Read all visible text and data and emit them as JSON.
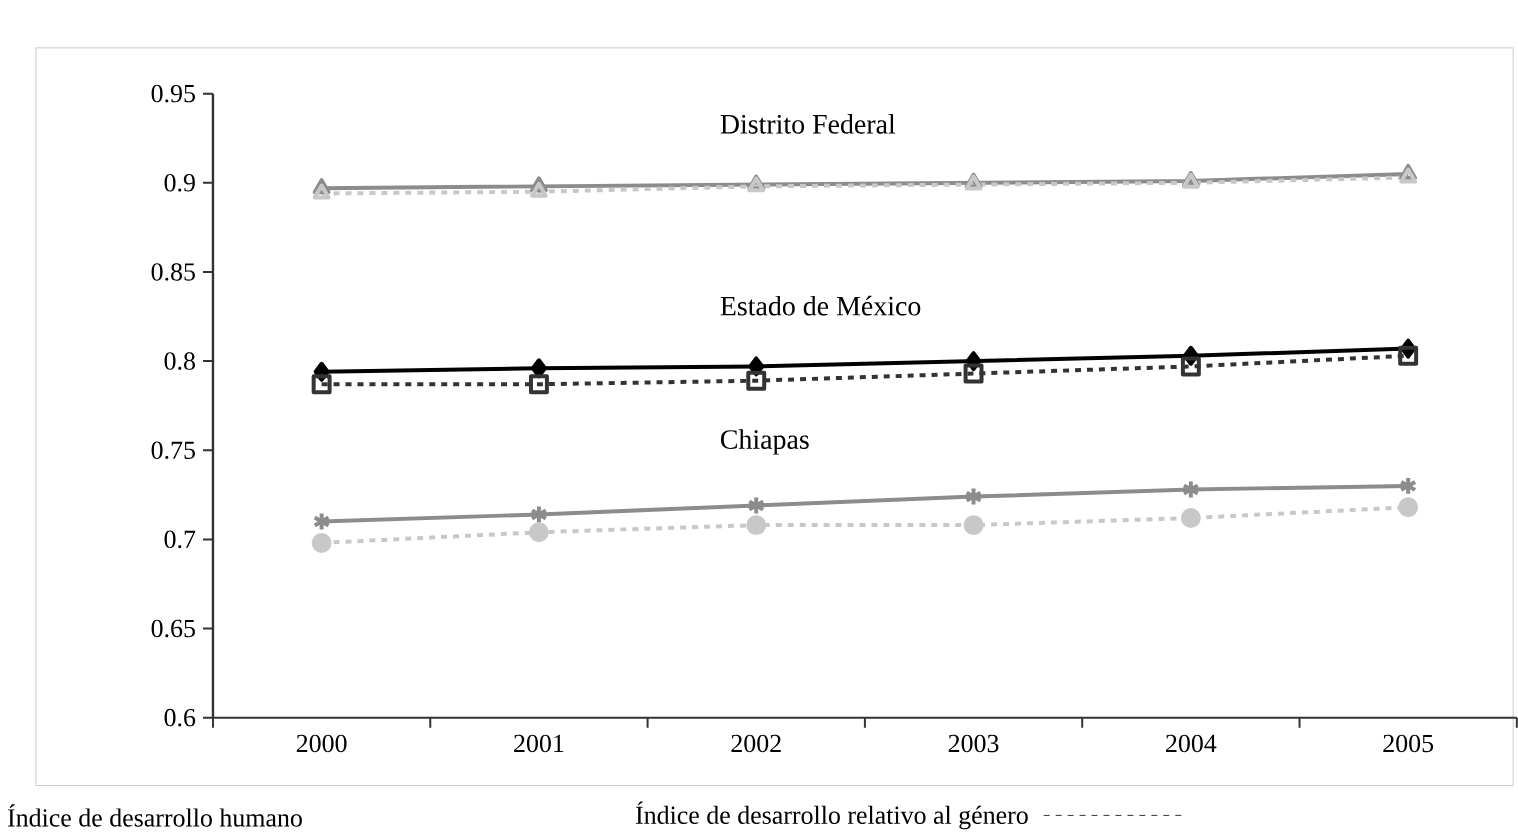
{
  "chart_data": {
    "type": "line",
    "categories": [
      "2000",
      "2001",
      "2002",
      "2003",
      "2004",
      "2005"
    ],
    "ylim": [
      0.6,
      0.95
    ],
    "yticks": [
      0.6,
      0.65,
      0.7,
      0.75,
      0.8,
      0.85,
      0.9,
      0.95
    ],
    "series": [
      {
        "color": "#8c8c8c",
        "marker": "triangle",
        "line_style": "solid",
        "values": [
          0.897,
          0.898,
          0.899,
          0.9,
          0.901,
          0.905
        ]
      },
      {
        "color": "#c8c8c8",
        "marker": "triangle",
        "line_style": "dashed",
        "values": [
          0.894,
          0.895,
          0.898,
          0.899,
          0.9,
          0.903
        ]
      },
      {
        "color": "#000000",
        "marker": "diamond",
        "line_style": "solid",
        "values": [
          0.794,
          0.796,
          0.797,
          0.8,
          0.803,
          0.807
        ]
      },
      {
        "color": "#333333",
        "marker": "square",
        "line_style": "dashed",
        "values": [
          0.787,
          0.787,
          0.789,
          0.793,
          0.797,
          0.803
        ]
      },
      {
        "color": "#8c8c8c",
        "marker": "cross",
        "line_style": "solid",
        "values": [
          0.71,
          0.714,
          0.719,
          0.724,
          0.728,
          0.73
        ]
      },
      {
        "color": "#c8c8c8",
        "marker": "circle",
        "line_style": "dashed",
        "values": [
          0.698,
          0.704,
          0.708,
          0.708,
          0.712,
          0.718
        ]
      }
    ],
    "annotations": [
      "Distrito Federal",
      "Estado de México",
      "Chiapas",
      "Índice de desarrollo humano",
      "Índice de desarrollo relativo al género"
    ]
  }
}
